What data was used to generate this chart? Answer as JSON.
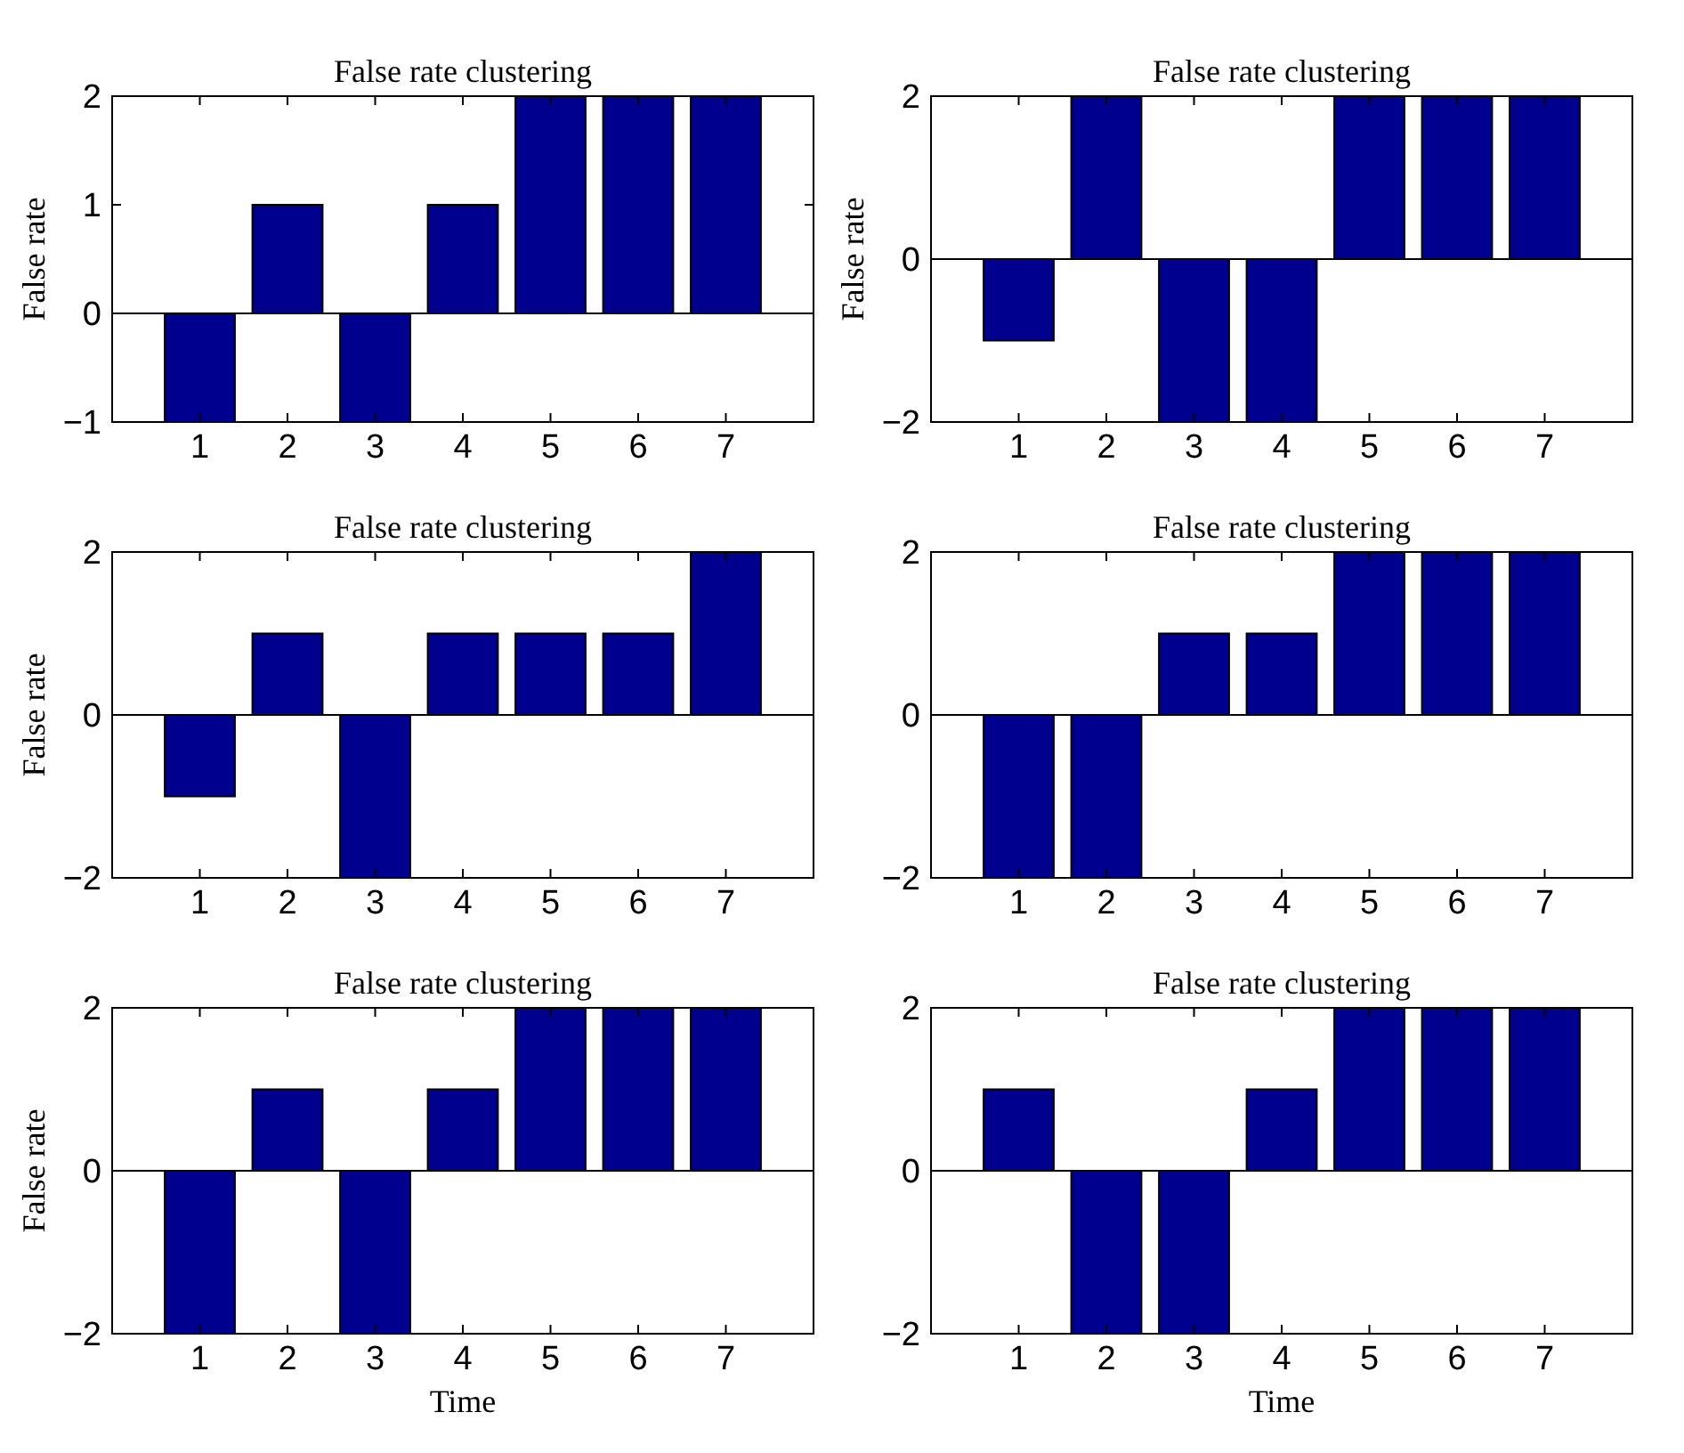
{
  "chart_data": [
    {
      "type": "bar",
      "title": "False rate clustering",
      "ylabel": "False rate",
      "categories": [
        "1",
        "2",
        "3",
        "4",
        "5",
        "6",
        "7"
      ],
      "values": [
        -1,
        1,
        -1,
        1,
        2,
        2,
        2
      ],
      "color": "#00008f",
      "ylim": [
        -1,
        2
      ],
      "yticks": [
        -1,
        0,
        1,
        2
      ]
    },
    {
      "type": "bar",
      "title": "False rate clustering",
      "ylabel": "False rate",
      "categories": [
        "1",
        "2",
        "3",
        "4",
        "5",
        "6",
        "7"
      ],
      "values": [
        -1,
        2,
        -2,
        -2,
        2,
        2,
        2
      ],
      "color": "#00008f",
      "ylim": [
        -2,
        2
      ],
      "yticks": [
        -2,
        0,
        2
      ]
    },
    {
      "type": "bar",
      "title": "False rate clustering",
      "ylabel": "False rate",
      "categories": [
        "1",
        "2",
        "3",
        "4",
        "5",
        "6",
        "7"
      ],
      "values": [
        -1,
        1,
        -2,
        1,
        1,
        1,
        2
      ],
      "color": "#00008f",
      "ylim": [
        -2,
        2
      ],
      "yticks": [
        -2,
        0,
        2
      ]
    },
    {
      "type": "bar",
      "title": "False rate clustering",
      "categories": [
        "1",
        "2",
        "3",
        "4",
        "5",
        "6",
        "7"
      ],
      "values": [
        -2,
        -2,
        1,
        1,
        2,
        2,
        2
      ],
      "color": "#00008f",
      "ylim": [
        -2,
        2
      ],
      "yticks": [
        -2,
        0,
        2
      ]
    },
    {
      "type": "bar",
      "title": "False rate clustering",
      "ylabel": "False rate",
      "xlabel": "Time",
      "categories": [
        "1",
        "2",
        "3",
        "4",
        "5",
        "6",
        "7"
      ],
      "values": [
        -2,
        1,
        -2,
        1,
        2,
        2,
        2
      ],
      "color": "#00008f",
      "ylim": [
        -2,
        2
      ],
      "yticks": [
        -2,
        0,
        2
      ]
    },
    {
      "type": "bar",
      "title": "False rate clustering",
      "xlabel": "Time",
      "categories": [
        "1",
        "2",
        "3",
        "4",
        "5",
        "6",
        "7"
      ],
      "values": [
        1,
        -2,
        -2,
        1,
        2,
        2,
        2
      ],
      "color": "#00008f",
      "ylim": [
        -2,
        2
      ],
      "yticks": [
        -2,
        0,
        2
      ]
    }
  ]
}
